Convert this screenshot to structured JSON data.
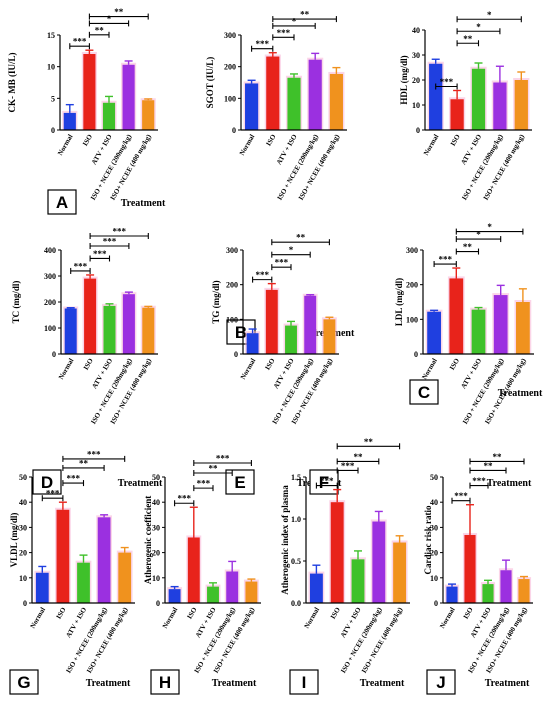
{
  "colors": {
    "normal": "#1f3fe0",
    "iso": "#e8231b",
    "atv_iso": "#3fc12a",
    "iso_ncee_200": "#9b30e0",
    "iso_ncee_400": "#f0921e",
    "halo": "#f7b3d6"
  },
  "chart_data": [
    {
      "panel": "A",
      "type": "bar",
      "ylabel": "CK- MB (IU/L)",
      "xlabel": "Treatment",
      "categories": [
        "Normal",
        "ISO",
        "ATV + ISO",
        "ISO + NCEE (200mg/kg)",
        "ISO+ NCEE (400 mg/kg)"
      ],
      "values": [
        2.7,
        12.0,
        4.3,
        10.3,
        4.7
      ],
      "errors": [
        1.3,
        0.6,
        1.0,
        0.6,
        0.2
      ],
      "ylim": [
        0,
        15
      ],
      "yticks": [
        "0",
        "5",
        "10",
        "15"
      ],
      "brackets": [
        {
          "from": 0,
          "to": 1,
          "label": "***"
        },
        {
          "from": 1,
          "to": 2,
          "label": "**"
        },
        {
          "from": 1,
          "to": 3,
          "label": "*"
        },
        {
          "from": 1,
          "to": 4,
          "label": "**"
        }
      ]
    },
    {
      "panel": "B",
      "type": "bar",
      "ylabel": "SGOT (IU/L)",
      "xlabel": "Treatment",
      "categories": [
        "Normal",
        "ISO",
        "ATV + ISO",
        "ISO + NCEE (200mg/kg)",
        "ISO+ NCEE (400 mg/kg)"
      ],
      "values": [
        147,
        232,
        165,
        222,
        177
      ],
      "errors": [
        10,
        12,
        12,
        20,
        20
      ],
      "ylim": [
        0,
        300
      ],
      "yticks": [
        "0",
        "100",
        "200",
        "300"
      ],
      "brackets": [
        {
          "from": 0,
          "to": 1,
          "label": "***"
        },
        {
          "from": 1,
          "to": 2,
          "label": "***"
        },
        {
          "from": 1,
          "to": 3,
          "label": "*"
        },
        {
          "from": 1,
          "to": 4,
          "label": "**"
        }
      ]
    },
    {
      "panel": "C",
      "type": "bar",
      "ylabel": "HDL (mg/dl)",
      "xlabel": "Treatment",
      "categories": [
        "Normal",
        "ISO",
        "ATV + ISO",
        "ISO + NCEE (200mg/kg)",
        "ISO+ NCEE (400 mg/kg)"
      ],
      "values": [
        26.5,
        12.3,
        24.5,
        19.0,
        20.0
      ],
      "errors": [
        1.8,
        3.5,
        2.3,
        6.5,
        3.2
      ],
      "ylim": [
        0,
        40
      ],
      "yticks": [
        "0",
        "10",
        "20",
        "30",
        "40"
      ],
      "brackets": [
        {
          "from": 0,
          "to": 1,
          "label": "***"
        },
        {
          "from": 1,
          "to": 2,
          "label": "**"
        },
        {
          "from": 1,
          "to": 3,
          "label": "*"
        },
        {
          "from": 1,
          "to": 4,
          "label": "*"
        }
      ]
    },
    {
      "panel": "D",
      "type": "bar",
      "ylabel": "TC (mg/dl)",
      "xlabel": "Treatment",
      "categories": [
        "Normal",
        "ISO",
        "ATV + ISO",
        "ISO + NCEE (200mg/kg)",
        "ISO+ NCEE (400 mg/kg)"
      ],
      "values": [
        175,
        290,
        185,
        230,
        178
      ],
      "errors": [
        3,
        14,
        8,
        8,
        5
      ],
      "ylim": [
        0,
        400
      ],
      "yticks": [
        "0",
        "100",
        "200",
        "300",
        "400"
      ],
      "brackets": [
        {
          "from": 0,
          "to": 1,
          "label": "***"
        },
        {
          "from": 1,
          "to": 2,
          "label": "***"
        },
        {
          "from": 1,
          "to": 3,
          "label": "***"
        },
        {
          "from": 1,
          "to": 4,
          "label": "***"
        }
      ]
    },
    {
      "panel": "E",
      "type": "bar",
      "ylabel": "TG (mg/dl)",
      "xlabel": "Treatment",
      "categories": [
        "Normal",
        "ISO",
        "ATV + ISO",
        "ISO + NCEE (200mg/kg)",
        "ISO+ NCEE (400 mg/kg)"
      ],
      "values": [
        60,
        185,
        82,
        168,
        100
      ],
      "errors": [
        12,
        18,
        12,
        3,
        6
      ],
      "ylim": [
        0,
        300
      ],
      "yticks": [
        "0",
        "100",
        "200",
        "300"
      ],
      "brackets": [
        {
          "from": 0,
          "to": 1,
          "label": "***"
        },
        {
          "from": 1,
          "to": 2,
          "label": "***"
        },
        {
          "from": 1,
          "to": 3,
          "label": "*"
        },
        {
          "from": 1,
          "to": 4,
          "label": "**"
        }
      ]
    },
    {
      "panel": "F",
      "type": "bar",
      "ylabel": "LDL (mg/dl)",
      "xlabel": "Treatment",
      "categories": [
        "Normal",
        "ISO",
        "ATV + ISO",
        "ISO + NCEE (200mg/kg)",
        "ISO+ NCEE (400 mg/kg)"
      ],
      "values": [
        122,
        218,
        128,
        170,
        150
      ],
      "errors": [
        4,
        30,
        6,
        28,
        38
      ],
      "ylim": [
        0,
        300
      ],
      "yticks": [
        "0",
        "100",
        "200",
        "300"
      ],
      "brackets": [
        {
          "from": 0,
          "to": 1,
          "label": "***"
        },
        {
          "from": 1,
          "to": 2,
          "label": "**"
        },
        {
          "from": 1,
          "to": 3,
          "label": "*"
        },
        {
          "from": 1,
          "to": 4,
          "label": "*"
        }
      ]
    },
    {
      "panel": "G",
      "type": "bar",
      "ylabel": "VLDL (mg/dl)",
      "xlabel": "Treatment",
      "categories": [
        "Normal",
        "ISO",
        "ATV + ISO",
        "ISO + NCEE (200mg/kg)",
        "ISO+ NCEE (400 mg/kg)"
      ],
      "values": [
        12,
        37,
        16,
        34,
        20
      ],
      "errors": [
        2.5,
        3,
        3,
        1,
        2
      ],
      "ylim": [
        0,
        50
      ],
      "yticks": [
        "0",
        "10",
        "20",
        "30",
        "40",
        "50"
      ],
      "brackets": [
        {
          "from": 0,
          "to": 1,
          "label": "***"
        },
        {
          "from": 1,
          "to": 2,
          "label": "***"
        },
        {
          "from": 1,
          "to": 3,
          "label": "**"
        },
        {
          "from": 1,
          "to": 4,
          "label": "***"
        }
      ]
    },
    {
      "panel": "H",
      "type": "bar",
      "ylabel": "Atherogenic coefficient",
      "xlabel": "Treatment",
      "categories": [
        "Normal",
        "ISO",
        "ATV + ISO",
        "ISO + NCEE (200mg/kg)",
        "ISO+ NCEE (400 mg/kg)"
      ],
      "values": [
        5.5,
        26,
        6.5,
        12.5,
        8.5
      ],
      "errors": [
        1,
        12,
        1.5,
        4,
        1
      ],
      "ylim": [
        0,
        50
      ],
      "yticks": [
        "0",
        "10",
        "20",
        "30",
        "40",
        "50"
      ],
      "brackets": [
        {
          "from": 0,
          "to": 1,
          "label": "***"
        },
        {
          "from": 1,
          "to": 2,
          "label": "***"
        },
        {
          "from": 1,
          "to": 3,
          "label": "**"
        },
        {
          "from": 1,
          "to": 4,
          "label": "***"
        }
      ]
    },
    {
      "panel": "I",
      "type": "bar",
      "ylabel": "Atherogenic index of plasma",
      "xlabel": "Treatment",
      "categories": [
        "Normal",
        "ISO",
        "ATV + ISO",
        "ISO + NCEE (200mg/kg)",
        "ISO+ NCEE (400 mg/kg)"
      ],
      "values": [
        0.35,
        1.2,
        0.52,
        0.97,
        0.72
      ],
      "errors": [
        0.1,
        0.15,
        0.1,
        0.12,
        0.08
      ],
      "ylim": [
        0,
        1.5
      ],
      "yticks": [
        "0.0",
        "0.5",
        "1.0",
        "1.5"
      ],
      "brackets": [
        {
          "from": 0,
          "to": 1,
          "label": "***"
        },
        {
          "from": 1,
          "to": 2,
          "label": "***"
        },
        {
          "from": 1,
          "to": 3,
          "label": "**"
        },
        {
          "from": 1,
          "to": 4,
          "label": "**"
        }
      ]
    },
    {
      "panel": "J",
      "type": "bar",
      "ylabel": "Cardiac risk ratio",
      "xlabel": "Treatment",
      "categories": [
        "Normal",
        "ISO",
        "ATV + ISO",
        "ISO + NCEE (200mg/kg)",
        "ISO+ NCEE (400 mg/kg)"
      ],
      "values": [
        6.5,
        27,
        7.5,
        13,
        9.5
      ],
      "errors": [
        1,
        12,
        1.5,
        4,
        1
      ],
      "ylim": [
        0,
        50
      ],
      "yticks": [
        "0",
        "10",
        "20",
        "30",
        "40",
        "50"
      ],
      "brackets": [
        {
          "from": 0,
          "to": 1,
          "label": "***"
        },
        {
          "from": 1,
          "to": 2,
          "label": "***"
        },
        {
          "from": 1,
          "to": 3,
          "label": "**"
        },
        {
          "from": 1,
          "to": 4,
          "label": "**"
        }
      ]
    }
  ]
}
